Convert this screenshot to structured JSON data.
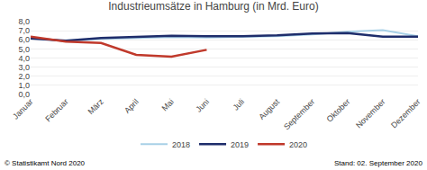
{
  "chart_data": {
    "type": "line",
    "title": "Industrieumsätze in Hamburg (in Mrd. Euro)",
    "categories": [
      "Januar",
      "Februar",
      "März",
      "April",
      "Mai",
      "Juni",
      "Juli",
      "August",
      "September",
      "Oktober",
      "November",
      "Dezember"
    ],
    "series": [
      {
        "name": "2018",
        "color": "#a8d0e6",
        "values": [
          6.2,
          5.85,
          6.1,
          6.2,
          6.3,
          6.25,
          6.3,
          6.4,
          6.6,
          6.9,
          7.05,
          6.4
        ]
      },
      {
        "name": "2019",
        "color": "#1e2d6b",
        "values": [
          6.15,
          5.9,
          6.2,
          6.3,
          6.45,
          6.4,
          6.4,
          6.5,
          6.7,
          6.75,
          6.35,
          6.35
        ]
      },
      {
        "name": "2020",
        "color": "#c0392b",
        "values": [
          6.35,
          5.8,
          5.65,
          4.35,
          4.15,
          4.9,
          null,
          null,
          null,
          null,
          null,
          null
        ]
      }
    ],
    "ylim": [
      0.0,
      8.0
    ],
    "yticks": [
      {
        "value": 0.0,
        "label": "0,0"
      },
      {
        "value": 1.0,
        "label": "1,0"
      },
      {
        "value": 2.0,
        "label": "2,0"
      },
      {
        "value": 3.0,
        "label": "3,0"
      },
      {
        "value": 4.0,
        "label": "4,0"
      },
      {
        "value": 5.0,
        "label": "5,0"
      },
      {
        "value": 6.0,
        "label": "6,0"
      },
      {
        "value": 7.0,
        "label": "7,0"
      },
      {
        "value": 8.0,
        "label": "8,0"
      }
    ],
    "grid": true,
    "legend": "bottom",
    "annotations": [
      "© Statistikamt Nord 2020",
      "Stand: 02. September 2020"
    ]
  }
}
